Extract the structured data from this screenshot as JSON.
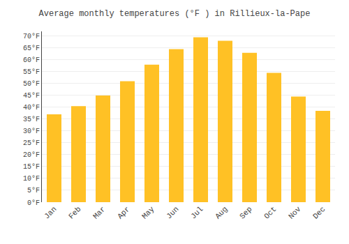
{
  "chart_data": {
    "type": "bar",
    "title": "Average monthly temperatures (°F ) in Rillieux-la-Pape",
    "categories": [
      "Jan",
      "Feb",
      "Mar",
      "Apr",
      "May",
      "Jun",
      "Jul",
      "Aug",
      "Sep",
      "Oct",
      "Nov",
      "Dec"
    ],
    "values": [
      37,
      40.5,
      45,
      51,
      58,
      64.5,
      69.5,
      68,
      63,
      54.5,
      44.5,
      38.5
    ],
    "color": "#FFC125",
    "ylim": [
      0,
      72
    ],
    "yticks": [
      {
        "value": 0,
        "label": "0°F"
      },
      {
        "value": 5,
        "label": "5°F"
      },
      {
        "value": 10,
        "label": "10°F"
      },
      {
        "value": 15,
        "label": "15°F"
      },
      {
        "value": 20,
        "label": "20°F"
      },
      {
        "value": 25,
        "label": "25°F"
      },
      {
        "value": 30,
        "label": "30°F"
      },
      {
        "value": 35,
        "label": "35°F"
      },
      {
        "value": 40,
        "label": "40°F"
      },
      {
        "value": 45,
        "label": "45°F"
      },
      {
        "value": 50,
        "label": "50°F"
      },
      {
        "value": 55,
        "label": "55°F"
      },
      {
        "value": 60,
        "label": "60°F"
      },
      {
        "value": 65,
        "label": "65°F"
      },
      {
        "value": 70,
        "label": "70°F"
      }
    ],
    "grid": true
  }
}
